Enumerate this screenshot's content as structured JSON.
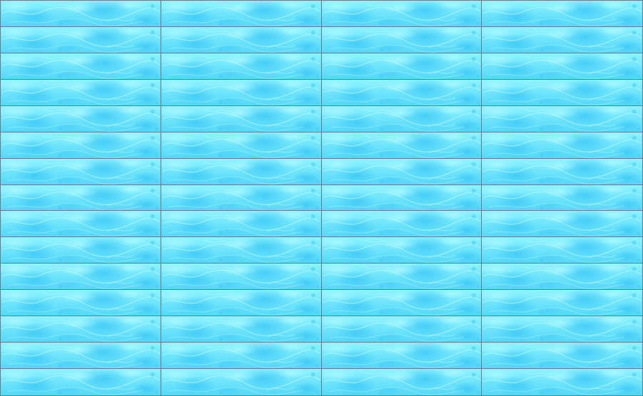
{
  "board": {
    "columns": 4,
    "rows": 15,
    "tile_texture": "water-ripple-texture",
    "colors": {
      "water_light": "#8ff3ff",
      "water_mid": "#6fe4fc",
      "water_deep": "#45cdf7",
      "grid_line": "#6a7c86"
    }
  }
}
